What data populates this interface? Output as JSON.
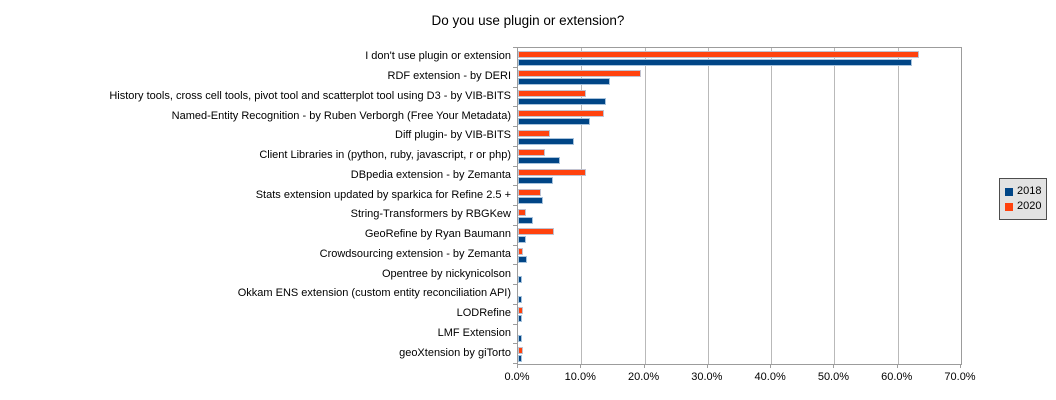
{
  "title": "Do you use plugin or extension?",
  "colors": {
    "series_2018": "#004586",
    "series_2020": "#FF420E",
    "bar_edge": "#bad0e6",
    "gridline": "#b9b9b9",
    "axis": "#9c9c9c",
    "legend_bg": "#e2e2e2",
    "legend_border": "#4d4d4d"
  },
  "legend": {
    "position": "right",
    "items": [
      {
        "label": "2018",
        "color": "#004586"
      },
      {
        "label": "2020",
        "color": "#FF420E"
      }
    ]
  },
  "chart_data": {
    "type": "bar",
    "orientation": "horizontal",
    "title": "Do you use plugin or extension?",
    "xlabel": "",
    "ylabel": "",
    "xlim": [
      0,
      70
    ],
    "x_tick_values": [
      0,
      10,
      20,
      30,
      40,
      50,
      60,
      70
    ],
    "x_tick_labels": [
      "0.0%",
      "10.0%",
      "20.0%",
      "30.0%",
      "40.0%",
      "50.0%",
      "60.0%",
      "70.0%"
    ],
    "grid": true,
    "value_unit": "%",
    "categories": [
      "I don't use plugin or extension",
      "RDF extension - by DERI",
      "History tools, cross cell tools, pivot tool and scatterplot tool using D3 - by VIB-BITS",
      "Named-Entity Recognition - by Ruben Verborgh (Free Your Metadata)",
      "Diff plugin- by VIB-BITS",
      "Client Libraries in (python, ruby, javascript, r or php)",
      "DBpedia extension - by Zemanta",
      "Stats extension updated by sparkica for Refine 2.5 +",
      "String-Transformers by RBGKew",
      "GeoRefine by Ryan Baumann",
      "Crowdsourcing extension - by Zemanta",
      "Opentree by nickynicolson",
      "Okkam ENS extension (custom entity reconciliation API)",
      "LODRefine",
      "LMF Extension",
      "geoXtension by giTorto"
    ],
    "series": [
      {
        "name": "2018",
        "color": "#004586",
        "values": [
          62.3,
          14.6,
          13.9,
          11.3,
          8.9,
          6.6,
          5.6,
          4.0,
          2.3,
          1.3,
          1.5,
          0.7,
          0.7,
          0.7,
          0.7,
          0.7
        ]
      },
      {
        "name": "2020",
        "color": "#FF420E",
        "values": [
          63.4,
          19.5,
          10.8,
          13.6,
          5.0,
          4.2,
          10.8,
          3.6,
          1.2,
          5.7,
          0.8,
          0,
          0,
          0.8,
          0,
          0.8
        ]
      }
    ],
    "draw_order_note": "2020 bar drawn above 2018 bar within each category group"
  }
}
